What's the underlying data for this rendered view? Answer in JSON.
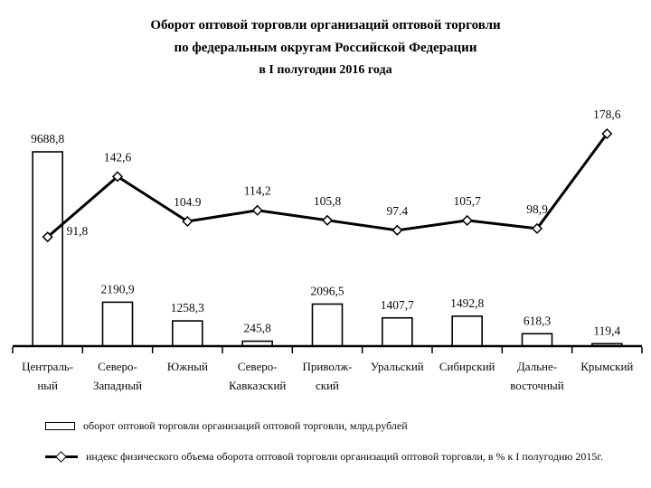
{
  "title": {
    "line1": "Оборот оптовой торговли организаций оптовой торговли",
    "line2": "по федеральным округам Российской Федерации",
    "line3": "в I полугодии 2016 года"
  },
  "legend": {
    "bar_label": "оборот оптовой торговли организаций оптовой торговли, млрд.рублей",
    "line_label": "индекс физического объема оборота оптовой торговли организаций оптовой торговли, в % к I полугодию 2015г."
  },
  "chart_data": {
    "type": "bar+line",
    "categories": [
      [
        "Централь-",
        "ный"
      ],
      [
        "Северо-",
        "Западный"
      ],
      [
        "Южный"
      ],
      [
        "Северо-",
        "Кавказский"
      ],
      [
        "Приволж-",
        "ский"
      ],
      [
        "Уральский"
      ],
      [
        "Сибирский"
      ],
      [
        "Дальне-",
        "восточный"
      ],
      [
        "Крымский"
      ]
    ],
    "series": [
      {
        "name": "оборот оптовой торговли организаций оптовой торговли, млрд.рублей",
        "type": "bar",
        "values": [
          9688.8,
          2190.9,
          1258.3,
          245.8,
          2096.5,
          1407.7,
          1492.8,
          618.3,
          119.4
        ],
        "labels": [
          "9688,8",
          "2190,9",
          "1258,3",
          "245,8",
          "2096,5",
          "1407,7",
          "1492,8",
          "618,3",
          "119,4"
        ]
      },
      {
        "name": "индекс физического объема оборота оптовой торговли организаций оптовой торговли, в % к I полугодию 2015г.",
        "type": "line",
        "values": [
          91.8,
          142.6,
          104.9,
          114.2,
          105.8,
          97.4,
          105.7,
          98.9,
          178.6
        ],
        "labels": [
          "91,8",
          "142,6",
          "104.9",
          "114,2",
          "105,8",
          "97.4",
          "105,7",
          "98,9",
          "178,6"
        ],
        "label_positions": [
          "right",
          "above",
          "above",
          "above",
          "above",
          "above",
          "above",
          "above",
          "above"
        ]
      }
    ],
    "colors": {
      "bar_fill": "#ffffff",
      "bar_stroke": "#000000",
      "line": "#000000",
      "marker_fill": "#ffffff",
      "text": "#0a0a0a"
    },
    "axes": {
      "bar_ylim": [
        0,
        9688.8
      ],
      "line_ylim": [
        0,
        178.6
      ],
      "grid": false,
      "y_axes_visible": false
    },
    "legend_position": "bottom-left"
  }
}
